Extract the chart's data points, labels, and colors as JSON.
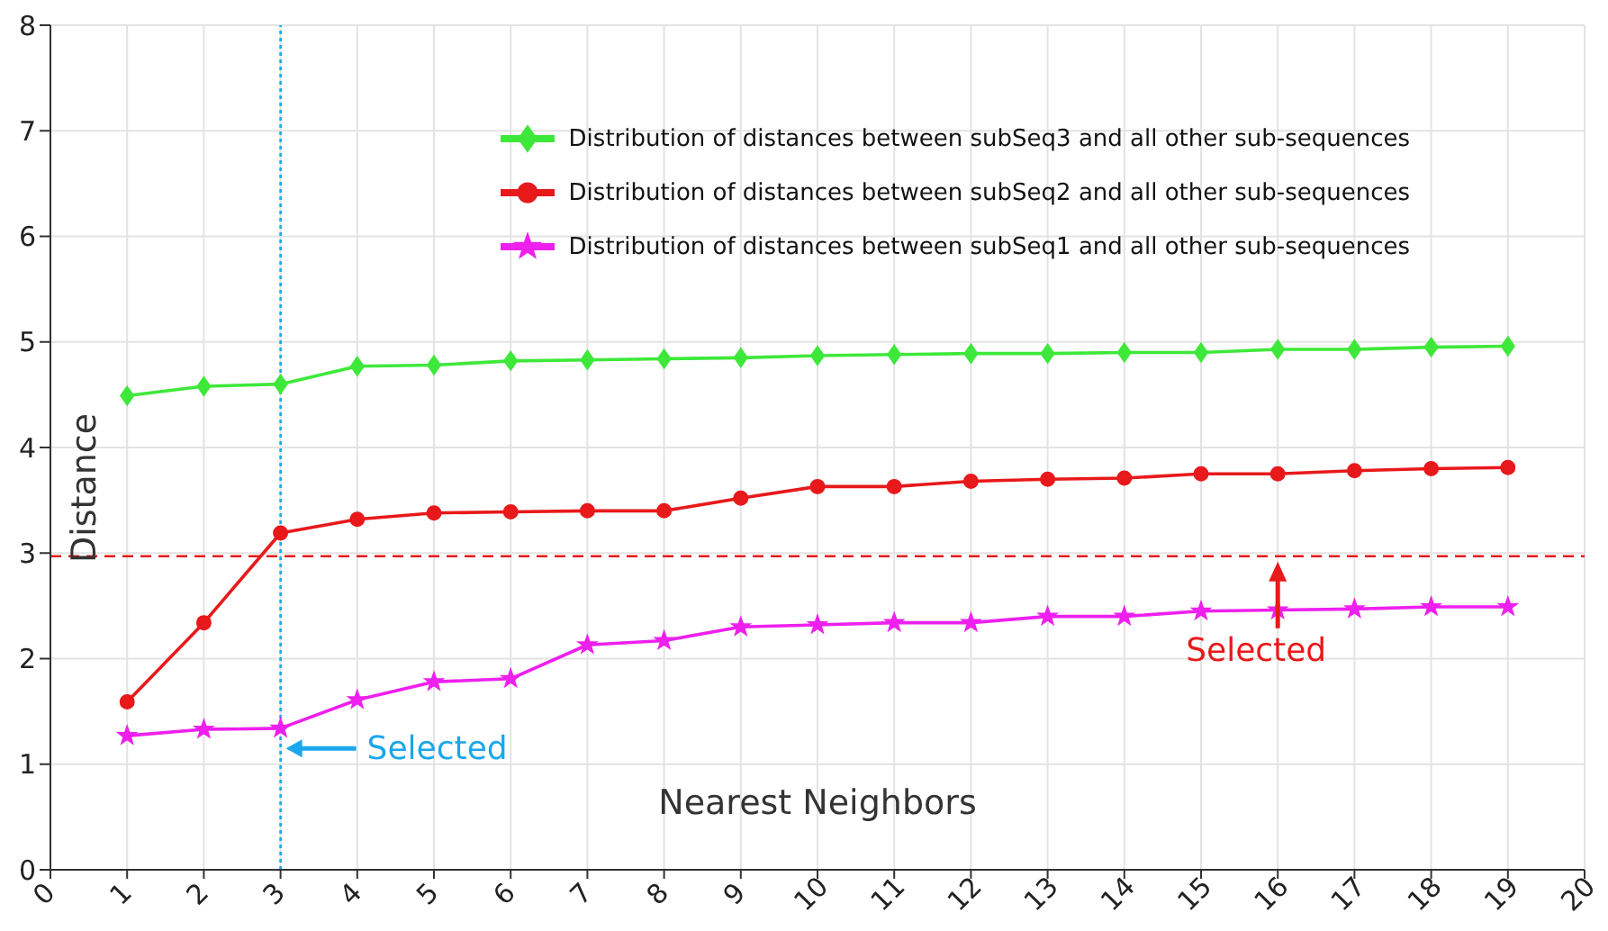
{
  "chart_data": {
    "type": "line",
    "xlabel": "Nearest Neighbors",
    "ylabel": "Distance",
    "x": [
      1,
      2,
      3,
      4,
      5,
      6,
      7,
      8,
      9,
      10,
      11,
      12,
      13,
      14,
      15,
      16,
      17,
      18,
      19
    ],
    "series": [
      {
        "name": "Distribution of distances between subSeq3 and all other sub-sequences",
        "color": "#3ee83a",
        "marker": "diamond",
        "values": [
          4.49,
          4.58,
          4.6,
          4.77,
          4.78,
          4.82,
          4.83,
          4.84,
          4.85,
          4.87,
          4.88,
          4.89,
          4.89,
          4.9,
          4.9,
          4.93,
          4.93,
          4.95,
          4.96
        ]
      },
      {
        "name": "Distribution of distances between subSeq2 and all other sub-sequences",
        "color": "#e8191b",
        "marker": "circle",
        "values": [
          1.59,
          2.34,
          3.19,
          3.32,
          3.38,
          3.39,
          3.4,
          3.4,
          3.52,
          3.63,
          3.63,
          3.68,
          3.7,
          3.71,
          3.75,
          3.75,
          3.78,
          3.8,
          3.81
        ]
      },
      {
        "name": "Distribution of distances between subSeq1 and all other sub-sequences",
        "color": "#ee20ee",
        "marker": "star",
        "values": [
          1.27,
          1.33,
          1.34,
          1.61,
          1.78,
          1.81,
          2.13,
          2.17,
          2.3,
          2.32,
          2.34,
          2.34,
          2.4,
          2.4,
          2.45,
          2.46,
          2.47,
          2.49,
          2.49
        ]
      }
    ],
    "xlim": [
      0,
      20
    ],
    "xticks": [
      0,
      1,
      2,
      3,
      4,
      5,
      6,
      7,
      8,
      9,
      10,
      11,
      12,
      13,
      14,
      15,
      16,
      17,
      18,
      19,
      20
    ],
    "ylim": [
      0,
      8
    ],
    "yticks": [
      0,
      1,
      2,
      3,
      4,
      5,
      6,
      7,
      8
    ],
    "grid": true,
    "legend": "top right",
    "line_style": "solid",
    "ref_lines": [
      {
        "axis": "x",
        "value": 3,
        "color": "#1aa7ec",
        "line_style": "dotted"
      },
      {
        "axis": "y",
        "value": 2.97,
        "color": "#e8191b",
        "line_style": "dashed"
      }
    ],
    "annotations": [
      {
        "text": "Selected",
        "x": 3,
        "y": 1.15
      },
      {
        "text": "Selected",
        "x": 16,
        "y": 2.97
      }
    ]
  }
}
